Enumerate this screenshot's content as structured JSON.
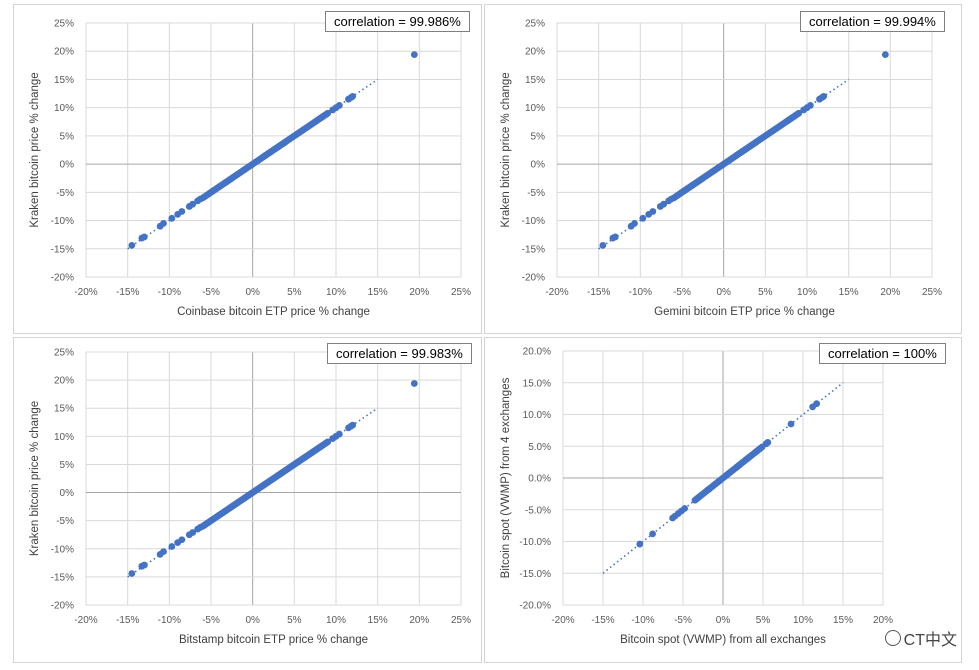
{
  "chart_data": [
    {
      "type": "scatter",
      "xlabel": "Coinbase bitcoin ETP price % change",
      "ylabel": "Kraken bitcoin price % change",
      "annotation": "correlation = 99.986%",
      "xlim": [
        -20,
        25
      ],
      "ylim": [
        -20,
        25
      ],
      "xticks": [
        "-20%",
        "-15%",
        "-10%",
        "-5%",
        "0%",
        "5%",
        "10%",
        "15%",
        "20%",
        "25%"
      ],
      "yticks": [
        "25%",
        "20%",
        "15%",
        "10%",
        "5%",
        "0%",
        "-5%",
        "-10%",
        "-15%",
        "-20%"
      ],
      "trendline": {
        "x": [
          -15,
          15
        ],
        "y": [
          -15,
          15
        ],
        "style": "dotted"
      },
      "dense_band": {
        "from": -6,
        "to": 9,
        "step": 0.2
      },
      "points": [
        [
          -14.5,
          -14.4
        ],
        [
          -13.3,
          -13.1
        ],
        [
          -13.0,
          -12.9
        ],
        [
          -11.1,
          -11.0
        ],
        [
          -10.7,
          -10.5
        ],
        [
          -9.7,
          -9.6
        ],
        [
          -9.0,
          -8.9
        ],
        [
          -8.5,
          -8.4
        ],
        [
          -7.6,
          -7.5
        ],
        [
          -7.2,
          -7.1
        ],
        [
          -6.6,
          -6.5
        ],
        [
          -6.3,
          -6.2
        ],
        [
          9.6,
          9.6
        ],
        [
          10.0,
          10.0
        ],
        [
          10.4,
          10.4
        ],
        [
          11.5,
          11.5
        ],
        [
          11.8,
          11.8
        ],
        [
          12.0,
          12.0
        ],
        [
          19.4,
          19.4
        ]
      ],
      "grid": true
    },
    {
      "type": "scatter",
      "xlabel": "Gemini bitcoin ETP price % change",
      "ylabel": "Kraken bitcoin price % change",
      "annotation": "correlation = 99.994%",
      "xlim": [
        -20,
        25
      ],
      "ylim": [
        -20,
        25
      ],
      "xticks": [
        "-20%",
        "-15%",
        "-10%",
        "-5%",
        "0%",
        "5%",
        "10%",
        "15%",
        "20%",
        "25%"
      ],
      "yticks": [
        "25%",
        "20%",
        "15%",
        "10%",
        "5%",
        "0%",
        "-5%",
        "-10%",
        "-15%",
        "-20%"
      ],
      "trendline": {
        "x": [
          -15,
          15
        ],
        "y": [
          -15,
          15
        ],
        "style": "dotted"
      },
      "dense_band": {
        "from": -6,
        "to": 9,
        "step": 0.2
      },
      "points": [
        [
          -14.5,
          -14.4
        ],
        [
          -13.3,
          -13.1
        ],
        [
          -13.0,
          -12.9
        ],
        [
          -11.1,
          -11.0
        ],
        [
          -10.7,
          -10.5
        ],
        [
          -9.7,
          -9.6
        ],
        [
          -9.0,
          -8.9
        ],
        [
          -8.5,
          -8.4
        ],
        [
          -7.6,
          -7.5
        ],
        [
          -7.2,
          -7.1
        ],
        [
          -6.6,
          -6.5
        ],
        [
          -6.3,
          -6.2
        ],
        [
          9.6,
          9.6
        ],
        [
          10.0,
          10.0
        ],
        [
          10.4,
          10.4
        ],
        [
          11.5,
          11.5
        ],
        [
          11.8,
          11.8
        ],
        [
          12.0,
          12.0
        ],
        [
          19.4,
          19.4
        ]
      ],
      "grid": true
    },
    {
      "type": "scatter",
      "xlabel": "Bitstamp bitcoin ETP price % change",
      "ylabel": "Kraken bitcoin price % change",
      "annotation": "correlation = 99.983%",
      "xlim": [
        -20,
        25
      ],
      "ylim": [
        -20,
        25
      ],
      "xticks": [
        "-20%",
        "-15%",
        "-10%",
        "-5%",
        "0%",
        "5%",
        "10%",
        "15%",
        "20%",
        "25%"
      ],
      "yticks": [
        "25%",
        "20%",
        "15%",
        "10%",
        "5%",
        "0%",
        "-5%",
        "-10%",
        "-15%",
        "-20%"
      ],
      "trendline": {
        "x": [
          -15,
          15
        ],
        "y": [
          -15,
          15
        ],
        "style": "dotted"
      },
      "dense_band": {
        "from": -6,
        "to": 9,
        "step": 0.2
      },
      "points": [
        [
          -14.5,
          -14.4
        ],
        [
          -13.3,
          -13.1
        ],
        [
          -13.0,
          -12.9
        ],
        [
          -11.1,
          -11.0
        ],
        [
          -10.7,
          -10.5
        ],
        [
          -9.7,
          -9.6
        ],
        [
          -9.0,
          -8.9
        ],
        [
          -8.5,
          -8.4
        ],
        [
          -7.6,
          -7.5
        ],
        [
          -7.2,
          -7.1
        ],
        [
          -6.6,
          -6.5
        ],
        [
          -6.3,
          -6.2
        ],
        [
          9.6,
          9.6
        ],
        [
          10.0,
          10.0
        ],
        [
          10.4,
          10.4
        ],
        [
          11.5,
          11.5
        ],
        [
          11.8,
          11.8
        ],
        [
          12.0,
          12.0
        ],
        [
          19.4,
          19.4
        ]
      ],
      "grid": true
    },
    {
      "type": "scatter",
      "xlabel": "Bitcoin spot (VWMP) from all exchanges",
      "ylabel": "Bitcoin spot (VWMP) from 4 exchanges",
      "annotation": "correlation = 100%",
      "xlim": [
        -20,
        20
      ],
      "ylim": [
        -20,
        20
      ],
      "xticks": [
        "-20%",
        "-15%",
        "-10%",
        "-5%",
        "0%",
        "5%",
        "10%",
        "15%",
        "20%"
      ],
      "yticks": [
        "20.0%",
        "15.0%",
        "10.0%",
        "5.0%",
        "0.0%",
        "-5.0%",
        "-10.0%",
        "-15.0%",
        "-20.0%"
      ],
      "trendline": {
        "x": [
          -15,
          15
        ],
        "y": [
          -15,
          15
        ],
        "style": "dotted"
      },
      "dense_band": {
        "from": -3.5,
        "to": 5,
        "step": 0.2
      },
      "points": [
        [
          -10.4,
          -10.4
        ],
        [
          -8.8,
          -8.8
        ],
        [
          -6.3,
          -6.3
        ],
        [
          -6.0,
          -6.0
        ],
        [
          -5.6,
          -5.6
        ],
        [
          -5.2,
          -5.2
        ],
        [
          -4.8,
          -4.8
        ],
        [
          5.4,
          5.4
        ],
        [
          5.6,
          5.6
        ],
        [
          8.5,
          8.5
        ],
        [
          11.2,
          11.2
        ],
        [
          11.7,
          11.7
        ]
      ],
      "grid": true
    }
  ],
  "colors": {
    "marker": "#4472c4",
    "grid": "#d9d9d9",
    "zero_axis": "#a6a6a6"
  },
  "watermark": {
    "text": "CT中文",
    "icon": "wechat-icon"
  }
}
